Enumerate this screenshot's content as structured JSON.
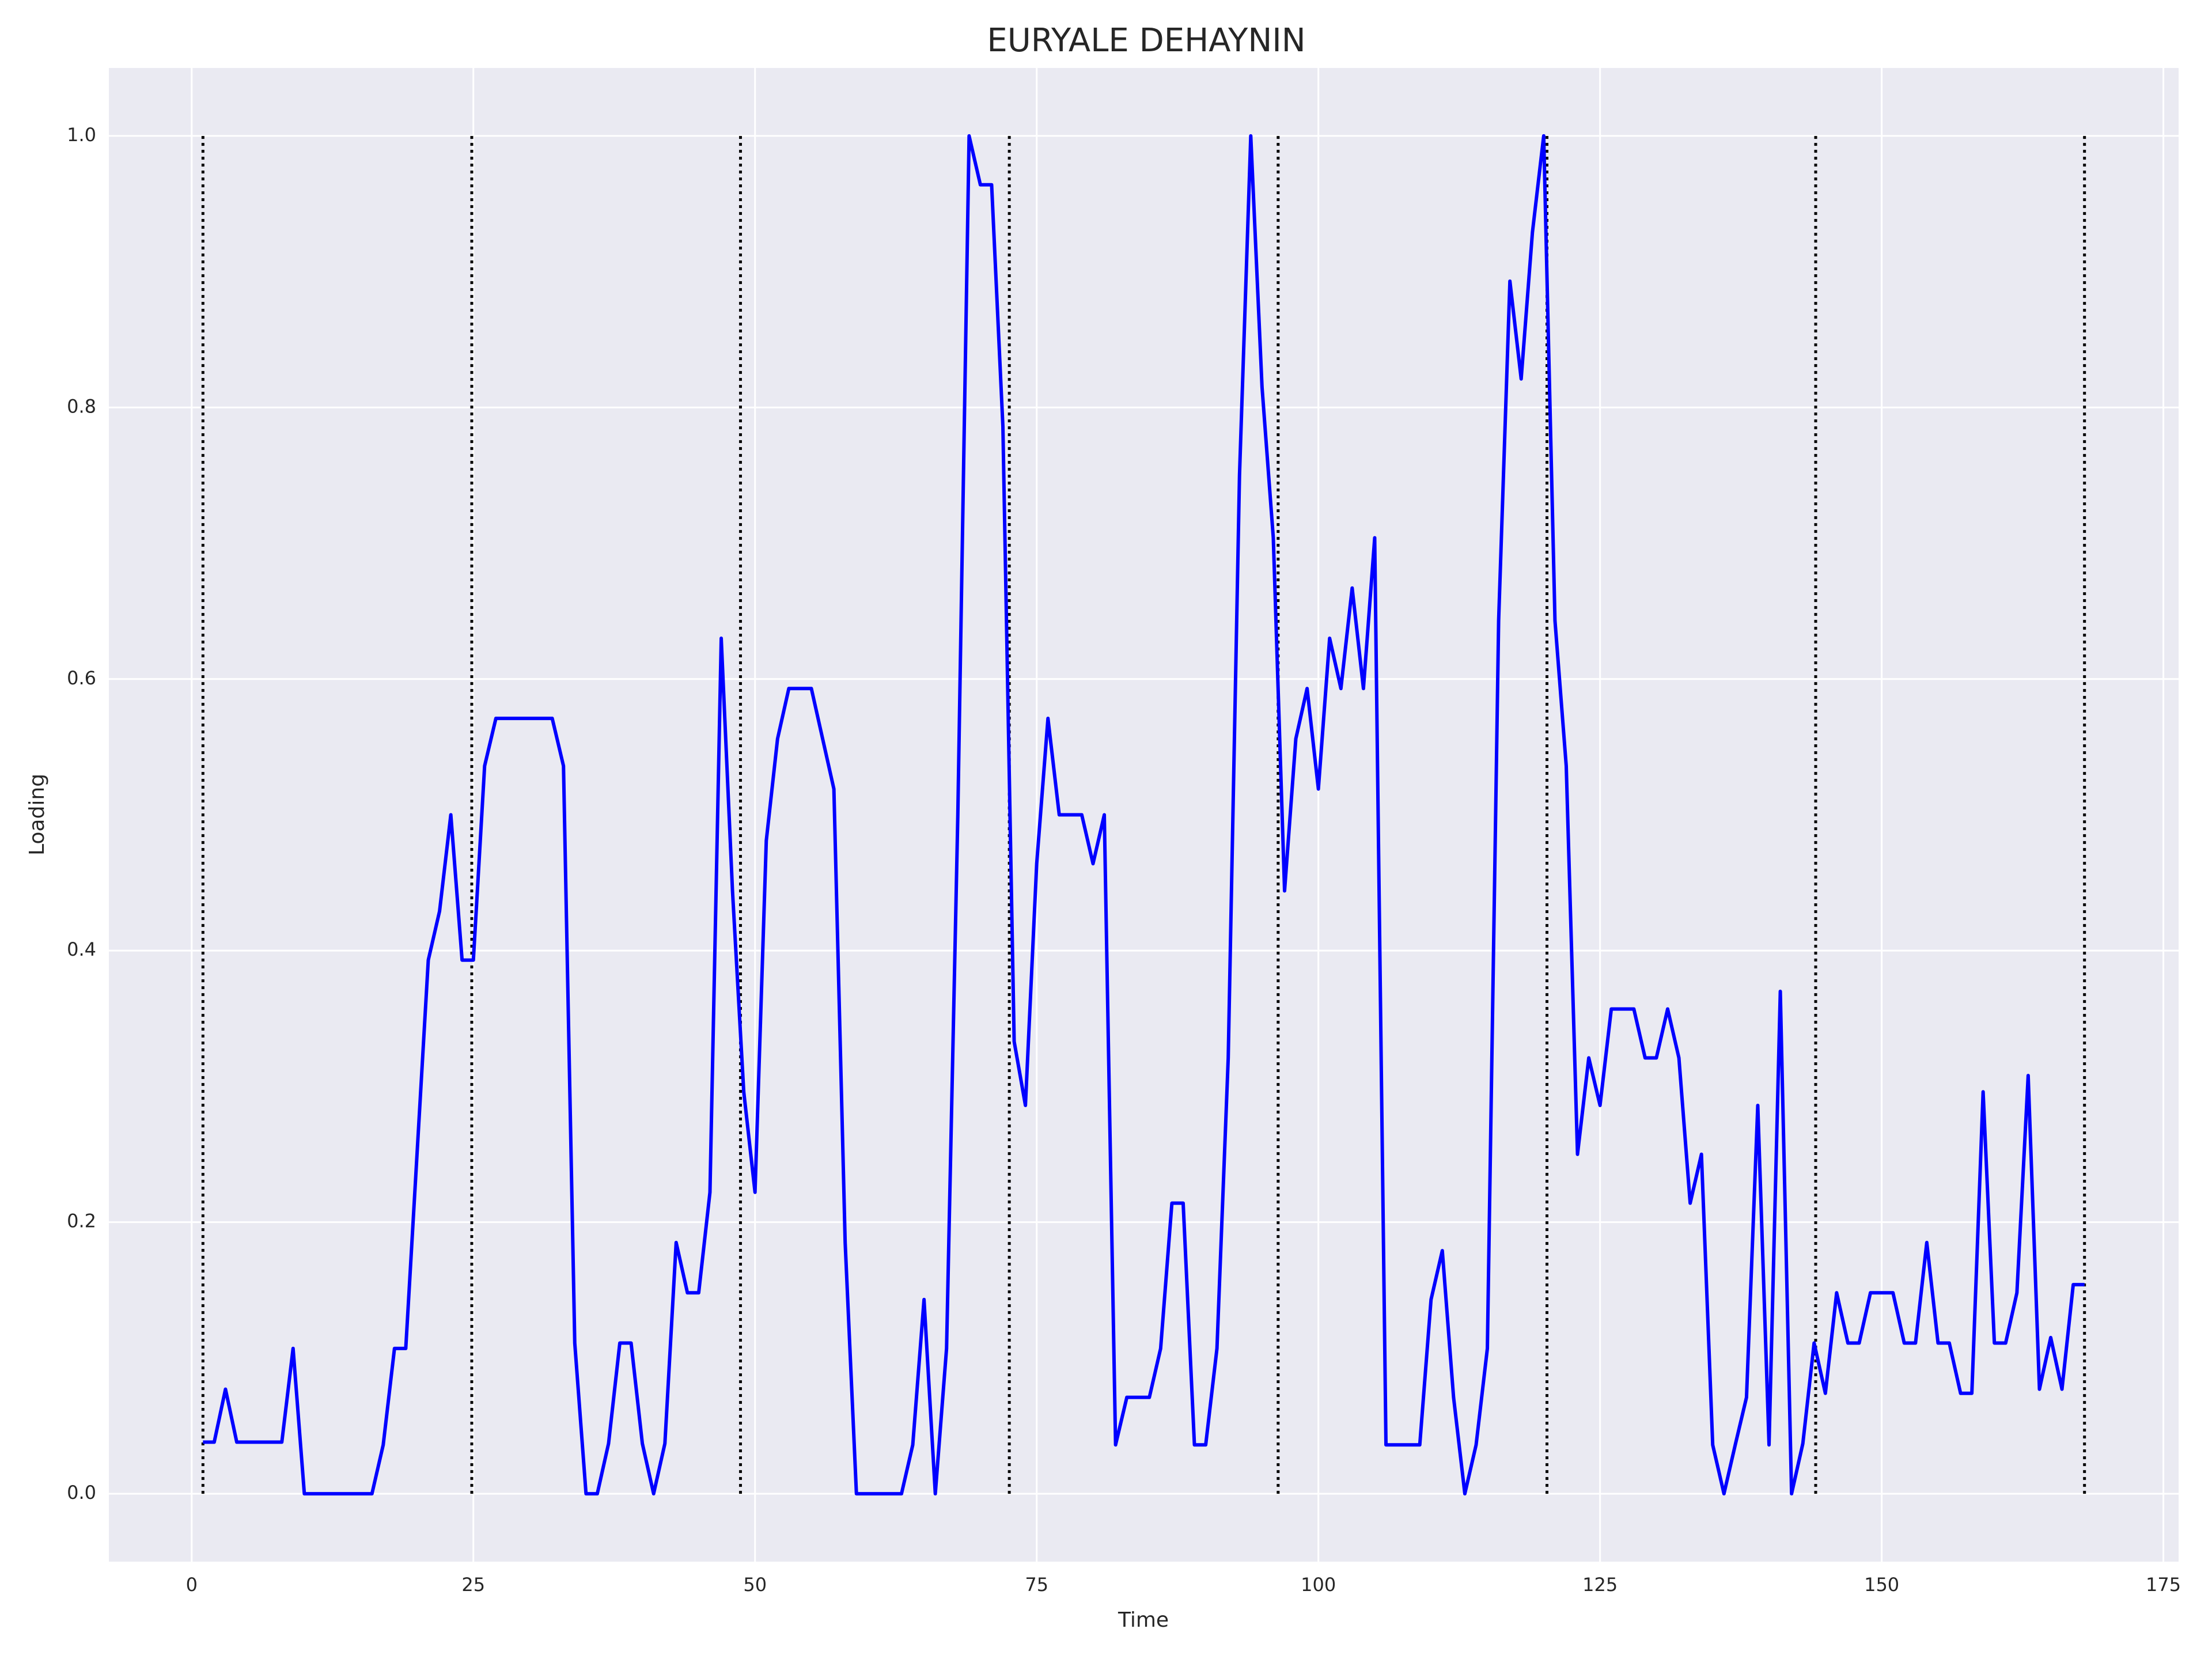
{
  "chart_data": {
    "type": "line",
    "title": "EURYALE DEHAYNIN",
    "x_label": "Time",
    "y_label": "Loading",
    "x": [
      1,
      2,
      3,
      4,
      5,
      6,
      7,
      8,
      9,
      10,
      11,
      12,
      13,
      14,
      15,
      16,
      17,
      18,
      19,
      20,
      21,
      22,
      23,
      24,
      25,
      26,
      27,
      28,
      29,
      30,
      31,
      32,
      33,
      34,
      35,
      36,
      37,
      38,
      39,
      40,
      41,
      42,
      43,
      44,
      45,
      46,
      47,
      48,
      49,
      50,
      51,
      52,
      53,
      54,
      55,
      56,
      57,
      58,
      59,
      60,
      61,
      62,
      63,
      64,
      65,
      66,
      67,
      68,
      69,
      70,
      71,
      72,
      73,
      74,
      75,
      76,
      77,
      78,
      79,
      80,
      81,
      82,
      83,
      84,
      85,
      86,
      87,
      88,
      89,
      90,
      91,
      92,
      93,
      94,
      95,
      96,
      97,
      98,
      99,
      100,
      101,
      102,
      103,
      104,
      105,
      106,
      107,
      108,
      109,
      110,
      111,
      112,
      113,
      114,
      115,
      116,
      117,
      118,
      119,
      120,
      121,
      122,
      123,
      124,
      125,
      126,
      127,
      128,
      129,
      130,
      131,
      132,
      133,
      134,
      135,
      136,
      137,
      138,
      139,
      140,
      141,
      142,
      143,
      144,
      145,
      146,
      147,
      148,
      149,
      150,
      151,
      152,
      153,
      154,
      155,
      156,
      157,
      158,
      159,
      160,
      161,
      162,
      163,
      164,
      165,
      166,
      167,
      168
    ],
    "series": [
      {
        "name": "Loading",
        "color": "#0000ff",
        "values": [
          0.038,
          0.038,
          0.077,
          0.038,
          0.038,
          0.038,
          0.038,
          0.038,
          0.107,
          0,
          0,
          0,
          0,
          0,
          0,
          0,
          0.036,
          0.107,
          0.107,
          0.25,
          0.393,
          0.429,
          0.5,
          0.393,
          0.393,
          0.536,
          0.571,
          0.571,
          0.571,
          0.571,
          0.571,
          0.571,
          0.536,
          0.111,
          0,
          0,
          0.037,
          0.111,
          0.111,
          0.037,
          0,
          0.037,
          0.185,
          0.148,
          0.148,
          0.222,
          0.63,
          0.444,
          0.296,
          0.222,
          0.481,
          0.556,
          0.593,
          0.593,
          0.593,
          0.556,
          0.519,
          0.185,
          0,
          0,
          0,
          0,
          0,
          0.036,
          0.143,
          0,
          0.107,
          0.5,
          1.0,
          0.964,
          0.964,
          0.786,
          0.333,
          0.286,
          0.464,
          0.571,
          0.5,
          0.5,
          0.5,
          0.464,
          0.5,
          0.036,
          0.071,
          0.071,
          0.071,
          0.107,
          0.214,
          0.214,
          0.036,
          0.036,
          0.107,
          0.321,
          0.75,
          1.0,
          0.815,
          0.704,
          0.444,
          0.556,
          0.593,
          0.519,
          0.63,
          0.593,
          0.667,
          0.593,
          0.704,
          0.036,
          0.036,
          0.036,
          0.036,
          0.143,
          0.179,
          0.071,
          0,
          0.036,
          0.107,
          0.643,
          0.893,
          0.821,
          0.929,
          1.0,
          0.643,
          0.536,
          0.25,
          0.321,
          0.286,
          0.357,
          0.357,
          0.357,
          0.321,
          0.321,
          0.357,
          0.321,
          0.214,
          0.25,
          0.036,
          0,
          0.036,
          0.071,
          0.286,
          0.036,
          0.37,
          0,
          0.037,
          0.111,
          0.074,
          0.148,
          0.111,
          0.111,
          0.148,
          0.148,
          0.148,
          0.111,
          0.111,
          0.185,
          0.111,
          0.111,
          0.074,
          0.074,
          0.296,
          0.111,
          0.111,
          0.148,
          0.308,
          0.077,
          0.115,
          0.077,
          0.154,
          0.154
        ]
      }
    ],
    "vlines": [
      1,
      24.86,
      48.71,
      72.57,
      96.43,
      120.29,
      144.14,
      168
    ],
    "vline_range": [
      0,
      1
    ],
    "vline_color": "#000000",
    "xlim": [
      -7.35,
      176.35
    ],
    "ylim": [
      -0.05,
      1.05
    ],
    "xticks": [
      0,
      25,
      50,
      75,
      100,
      125,
      150,
      175
    ],
    "yticks": [
      {
        "value": 0,
        "label": "0.0"
      },
      {
        "value": 0.2,
        "label": "0.2"
      },
      {
        "value": 0.4,
        "label": "0.4"
      },
      {
        "value": 0.6,
        "label": "0.6"
      },
      {
        "value": 0.8,
        "label": "0.8"
      },
      {
        "value": 1,
        "label": "1.0"
      }
    ],
    "grid": true
  }
}
